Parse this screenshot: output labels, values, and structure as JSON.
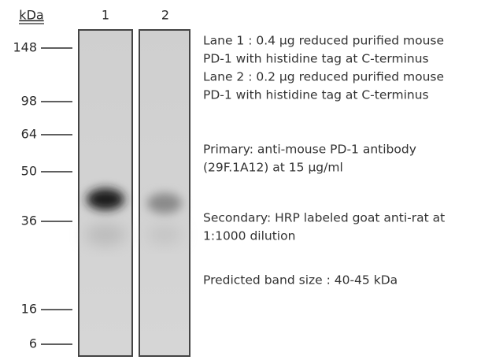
{
  "axis_label": "kDa",
  "lanes": [
    "1",
    "2"
  ],
  "markers": [
    "148",
    "98",
    "64",
    "50",
    "36",
    "16",
    "6"
  ],
  "legend": [
    [
      "Lane 1 : 0.4 µg reduced purified mouse",
      "PD-1 with histidine tag at C-terminus",
      "Lane 2 : 0.2 µg reduced purified mouse",
      "PD-1 with histidine tag at C-terminus"
    ],
    [
      "Primary: anti-mouse PD-1 antibody",
      "(29F.1A12) at 15 µg/ml"
    ],
    [
      "Secondary: HRP labeled goat anti-rat at",
      "1:1000 dilution"
    ],
    [
      "Predicted band size : 40-45 kDa"
    ]
  ]
}
